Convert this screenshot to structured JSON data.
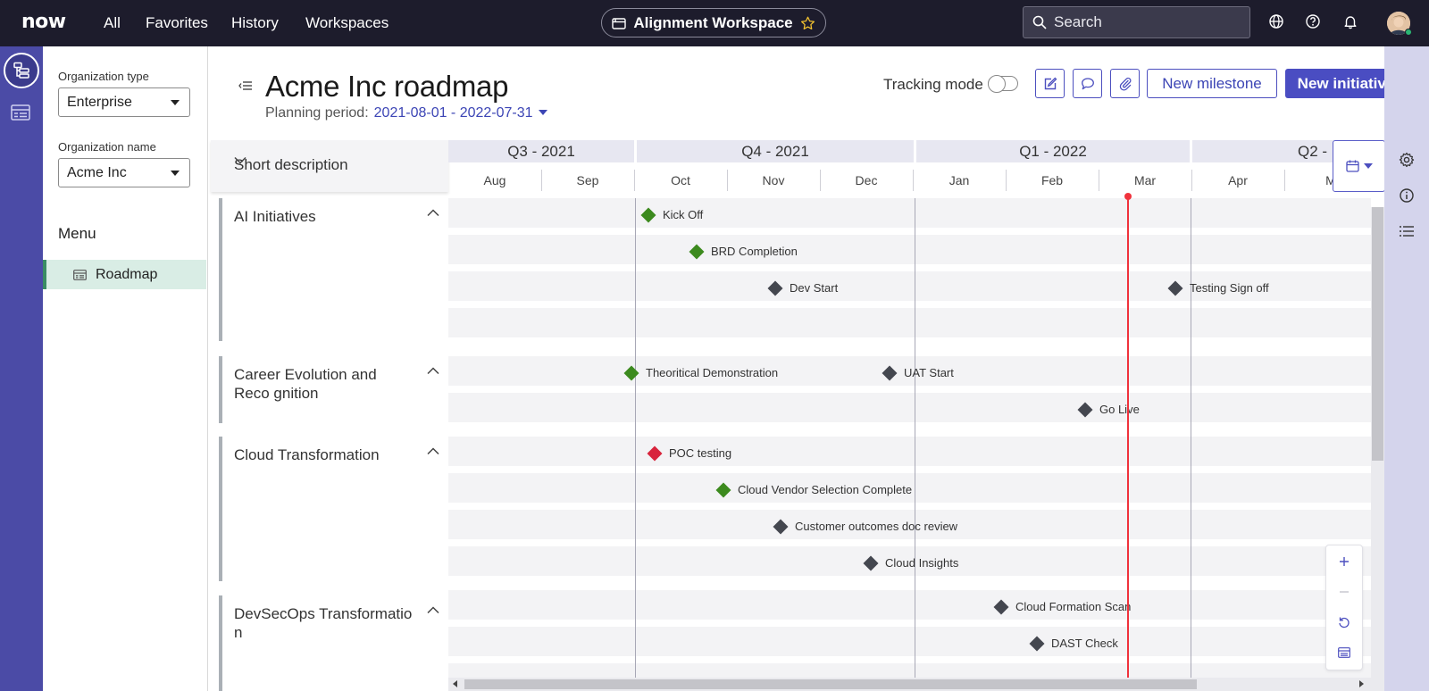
{
  "topbar": {
    "logo": "now",
    "nav": [
      "All",
      "Favorites",
      "History",
      "Workspaces"
    ],
    "workspace_name": "Alignment Workspace",
    "search_placeholder": "Search",
    "icons": [
      "globe-icon",
      "help-icon",
      "bell-icon",
      "avatar"
    ]
  },
  "rail": {
    "icons": [
      "hierarchy-icon",
      "roadmap-list-icon"
    ]
  },
  "left_panel": {
    "org_type_label": "Organization type",
    "org_type_value": "Enterprise",
    "org_name_label": "Organization name",
    "org_name_value": "Acme Inc",
    "menu_heading": "Menu",
    "menu_items": [
      {
        "label": "Roadmap",
        "active": true
      }
    ]
  },
  "header": {
    "title": "Acme Inc roadmap",
    "planning_label": "Planning period:",
    "planning_value": "2021-08-01 - 2022-07-31",
    "tracking_label": "Tracking mode",
    "tracking_on": false,
    "new_milestone": "New milestone",
    "new_initiative": "New initiative"
  },
  "timeline": {
    "column_header": "Short description",
    "quarters": [
      "Q3 - 2021",
      "Q4 - 2021",
      "Q1 - 2022",
      "Q2 -"
    ],
    "months": [
      "Aug",
      "Sep",
      "Oct",
      "Nov",
      "Dec",
      "Jan",
      "Feb",
      "Mar",
      "Apr",
      "M"
    ]
  },
  "groups": [
    {
      "name": "AI Initiatives"
    },
    {
      "name": "Career Evolution and Reco gnition"
    },
    {
      "name": "Cloud Transformation"
    },
    {
      "name": "DevSecOps Transformatio n"
    }
  ],
  "milestones": [
    {
      "label": "Kick Off",
      "status": "green"
    },
    {
      "label": "BRD Completion",
      "status": "green"
    },
    {
      "label": "Dev Start",
      "status": "gray"
    },
    {
      "label": "Testing Sign off",
      "status": "gray"
    },
    {
      "label": "Theoritical Demonstration",
      "status": "green"
    },
    {
      "label": "UAT Start",
      "status": "gray"
    },
    {
      "label": "Go Live",
      "status": "gray"
    },
    {
      "label": "POC testing",
      "status": "red"
    },
    {
      "label": "Cloud Vendor Selection Complete",
      "status": "green"
    },
    {
      "label": "Customer outcomes doc review",
      "status": "gray"
    },
    {
      "label": "Cloud Insights",
      "status": "gray"
    },
    {
      "label": "Cloud Formation Scan",
      "status": "gray"
    },
    {
      "label": "DAST Check",
      "status": "gray"
    }
  ],
  "colors": {
    "topbar_bg": "#1d1c2c",
    "rail_bg": "#4b4ba6",
    "accent": "#4a4dc2",
    "today_line": "#f0323c",
    "status_green": "#3c8a1e",
    "status_gray": "#44474f",
    "status_red": "#d8243c"
  },
  "zoom_panel": {
    "icons": [
      "plus-icon",
      "minus-icon",
      "reset-icon",
      "table-icon"
    ]
  }
}
